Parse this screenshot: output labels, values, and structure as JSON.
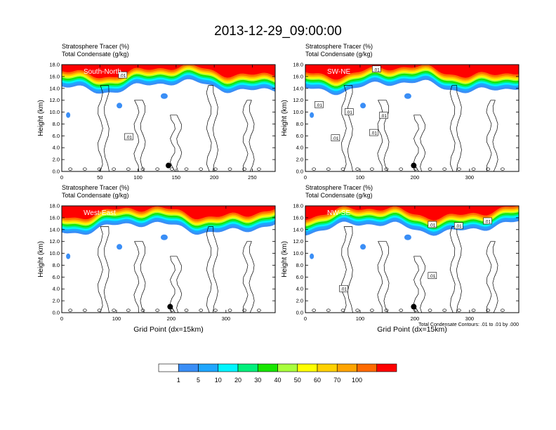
{
  "page": {
    "title": "2013-12-29_09:00:00"
  },
  "chart_data": [
    {
      "type": "heatmap",
      "title_lines": [
        "Stratosphere Tracer   (%)",
        "Total Condensate   (g/kg)"
      ],
      "transect_label": "South-North",
      "ylabel": "Height (km)",
      "xlabel": "",
      "xlim": [
        0,
        280
      ],
      "ylim": [
        0,
        18
      ],
      "xticks": [
        0,
        50,
        100,
        150,
        200,
        250
      ],
      "yticks": [
        "0.0",
        "2.0",
        "4.0",
        "6.0",
        "8.0",
        "10.0",
        "12.0",
        "14.0",
        "16.0",
        "18.0"
      ],
      "marker": {
        "x": 140,
        "y": 1.0
      },
      "contour_labels": [
        {
          "text": ".01",
          "x": 80,
          "y": 16.2
        },
        {
          "text": ".01",
          "x": 88,
          "y": 5.8
        }
      ]
    },
    {
      "type": "heatmap",
      "title_lines": [
        "Stratosphere Tracer   (%)",
        "Total Condensate   (g/kg)"
      ],
      "transect_label": "SW-NE",
      "ylabel": "Height (km)",
      "xlabel": "",
      "xlim": [
        0,
        390
      ],
      "ylim": [
        0,
        18
      ],
      "xticks": [
        0,
        100,
        200,
        300
      ],
      "yticks": [
        "0.0",
        "2.0",
        "4.0",
        "6.0",
        "8.0",
        "10.0",
        "12.0",
        "14.0",
        "16.0",
        "18.0"
      ],
      "marker": {
        "x": 198,
        "y": 1.0
      },
      "contour_labels": [
        {
          "text": ".01",
          "x": 130,
          "y": 17.2
        },
        {
          "text": ".01",
          "x": 25,
          "y": 11.2
        },
        {
          "text": ".01",
          "x": 80,
          "y": 10.0
        },
        {
          "text": ".01",
          "x": 143,
          "y": 9.4
        },
        {
          "text": ".01",
          "x": 125,
          "y": 6.5
        },
        {
          "text": ".01",
          "x": 55,
          "y": 5.6
        }
      ]
    },
    {
      "type": "heatmap",
      "title_lines": [
        "Stratosphere Tracer   (%)",
        "Total Condensate   (g/kg)"
      ],
      "transect_label": "West-East",
      "ylabel": "Height (km)",
      "xlabel": "Grid Point (dx=15km)",
      "xlim": [
        0,
        390
      ],
      "ylim": [
        0,
        18
      ],
      "xticks": [
        0,
        100,
        200,
        300
      ],
      "yticks": [
        "0.0",
        "2.0",
        "4.0",
        "6.0",
        "8.0",
        "10.0",
        "12.0",
        "14.0",
        "16.0",
        "18.0"
      ],
      "marker": {
        "x": 198,
        "y": 1.0
      },
      "contour_labels": []
    },
    {
      "type": "heatmap",
      "title_lines": [
        "Stratosphere Tracer   (%)",
        "Total Condensate   (g/kg)"
      ],
      "transect_label": "NW-SE",
      "ylabel": "Height (km)",
      "xlabel": "Grid Point (dx=15km)",
      "xlim": [
        0,
        390
      ],
      "ylim": [
        0,
        18
      ],
      "xticks": [
        0,
        100,
        200,
        300
      ],
      "yticks": [
        "0.0",
        "2.0",
        "4.0",
        "6.0",
        "8.0",
        "10.0",
        "12.0",
        "14.0",
        "16.0",
        "18.0"
      ],
      "marker": {
        "x": 198,
        "y": 1.0
      },
      "note": "Total Condensate Contours: .01 to .01 by .000",
      "contour_labels": [
        {
          "text": ".01",
          "x": 232,
          "y": 14.8
        },
        {
          "text": ".01",
          "x": 280,
          "y": 14.6
        },
        {
          "text": ".01",
          "x": 333,
          "y": 15.4
        },
        {
          "text": ".01",
          "x": 70,
          "y": 4.0
        },
        {
          "text": ".01",
          "x": 232,
          "y": 6.2
        }
      ]
    }
  ],
  "colorbar": {
    "colors": [
      "#ffffff",
      "#3a8ef6",
      "#1fa6ff",
      "#00f5ff",
      "#00f07c",
      "#17e600",
      "#a8ff3c",
      "#ffff00",
      "#ffd100",
      "#ffa400",
      "#ff6a00",
      "#ff0000"
    ],
    "labels": [
      "1",
      "5",
      "10",
      "20",
      "30",
      "40",
      "50",
      "60",
      "70",
      "100"
    ]
  }
}
